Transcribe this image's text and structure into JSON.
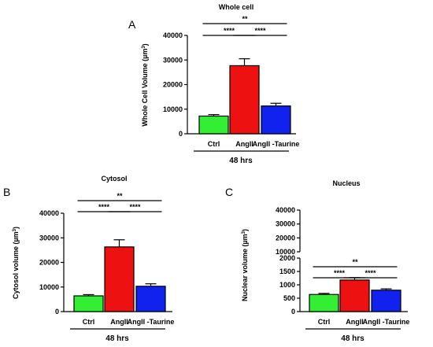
{
  "chart_data": [
    {
      "panel": "A",
      "type": "bar",
      "title": "Whole cell",
      "ylabel": "Whole Cell Volume (µm³)",
      "categories": [
        "Ctrl",
        "AngII",
        "AngII -Taurine"
      ],
      "values": [
        7200,
        27700,
        11300
      ],
      "errors": [
        600,
        2800,
        1100
      ],
      "ylim": [
        0,
        40000
      ],
      "yticks": [
        "0",
        "10000",
        "20000",
        "30000",
        "40000"
      ],
      "group_label": "48 hrs",
      "colors": [
        "#33ee33",
        "#ee1111",
        "#1122ee"
      ],
      "significance": [
        {
          "from": 0,
          "to": 1,
          "label": "****"
        },
        {
          "from": 1,
          "to": 2,
          "label": "****"
        },
        {
          "from": 0,
          "to": 2,
          "label": "**"
        }
      ]
    },
    {
      "panel": "B",
      "type": "bar",
      "title": "Cytosol",
      "ylabel": "Cytosol volume (µm³)",
      "categories": [
        "Ctrl",
        "AngII",
        "AngII -Taurine"
      ],
      "values": [
        6400,
        26300,
        10300
      ],
      "errors": [
        500,
        2900,
        1000
      ],
      "ylim": [
        0,
        40000
      ],
      "yticks": [
        "0",
        "10000",
        "20000",
        "30000",
        "40000"
      ],
      "group_label": "48 hrs",
      "colors": [
        "#33ee33",
        "#ee1111",
        "#1122ee"
      ],
      "significance": [
        {
          "from": 0,
          "to": 1,
          "label": "****"
        },
        {
          "from": 1,
          "to": 2,
          "label": "****"
        },
        {
          "from": 0,
          "to": 2,
          "label": "**"
        }
      ]
    },
    {
      "panel": "C",
      "type": "bar",
      "title": "Nucleus",
      "ylabel": "Nuclear volume (µm³)",
      "categories": [
        "Ctrl",
        "AngII",
        "AngII -Taurine"
      ],
      "values": [
        640,
        1180,
        800
      ],
      "errors": [
        40,
        90,
        50
      ],
      "ylim_lower": [
        0,
        2000
      ],
      "ylim_upper": [
        10000,
        40000
      ],
      "yticks_lower": [
        "0",
        "500",
        "1000",
        "1500",
        "2000"
      ],
      "yticks_upper": [
        "10000",
        "20000",
        "30000",
        "40000"
      ],
      "group_label": "48 hrs",
      "colors": [
        "#33ee33",
        "#ee1111",
        "#1122ee"
      ],
      "significance": [
        {
          "from": 0,
          "to": 1,
          "label": "****"
        },
        {
          "from": 1,
          "to": 2,
          "label": "****"
        },
        {
          "from": 0,
          "to": 2,
          "label": "**"
        }
      ]
    }
  ]
}
